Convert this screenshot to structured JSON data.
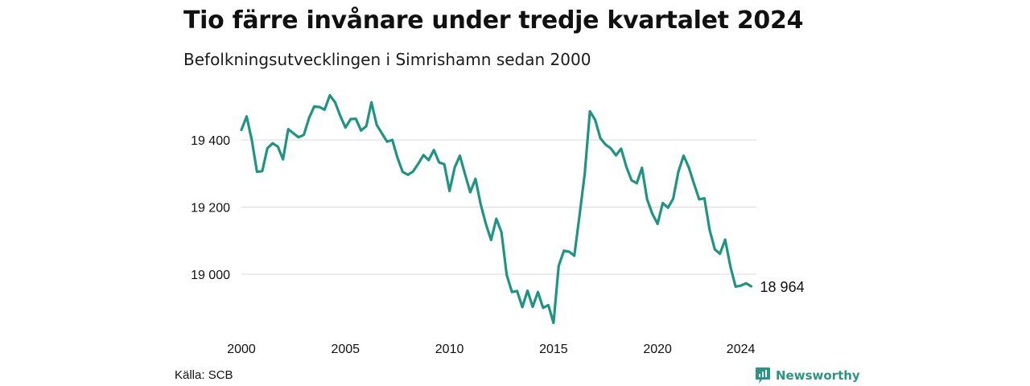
{
  "title": "Tio färre invånare under tredje kvartalet 2024",
  "subtitle": "Befolkningsutvecklingen i Simrishamn sedan 2000",
  "source": "Källa: SCB",
  "brand": {
    "name": "Newsworthy",
    "icon": "newsworthy-logo-icon"
  },
  "colors": {
    "line": "#1f9483",
    "grid": "#d9d9d9",
    "brand": "#2a9583"
  },
  "chart_data": {
    "type": "line",
    "title": "Tio färre invånare under tredje kvartalet 2024",
    "subtitle": "Befolkningsutvecklingen i Simrishamn sedan 2000",
    "xlabel": "",
    "ylabel": "",
    "frequency": "quarterly",
    "start": "2000 Q1",
    "end": "2024 Q3",
    "xlim": [
      2000,
      2024.75
    ],
    "ylim": [
      18850,
      19550
    ],
    "x_ticks": [
      {
        "value": 2000,
        "label": "2000"
      },
      {
        "value": 2005,
        "label": "2005"
      },
      {
        "value": 2010,
        "label": "2010"
      },
      {
        "value": 2015,
        "label": "2015"
      },
      {
        "value": 2020,
        "label": "2020"
      },
      {
        "value": 2024,
        "label": "2024"
      }
    ],
    "y_ticks": [
      {
        "value": 19000,
        "label": "19 000"
      },
      {
        "value": 19200,
        "label": "19 200"
      },
      {
        "value": 19400,
        "label": "19 400"
      }
    ],
    "grid": "horizontal",
    "last_label": "18 964",
    "values": [
      19430,
      19470,
      19400,
      19305,
      19307,
      19375,
      19390,
      19380,
      19342,
      19432,
      19420,
      19408,
      19415,
      19465,
      19500,
      19498,
      19490,
      19533,
      19512,
      19472,
      19437,
      19462,
      19463,
      19428,
      19441,
      19512,
      19445,
      19420,
      19395,
      19400,
      19347,
      19305,
      19296,
      19306,
      19329,
      19355,
      19340,
      19370,
      19333,
      19328,
      19248,
      19318,
      19353,
      19297,
      19244,
      19284,
      19208,
      19150,
      19102,
      19165,
      19125,
      18998,
      18947,
      18950,
      18902,
      18951,
      18903,
      18947,
      18900,
      18908,
      18855,
      19025,
      19070,
      19067,
      19055,
      19175,
      19300,
      19485,
      19460,
      19405,
      19386,
      19375,
      19354,
      19374,
      19320,
      19280,
      19271,
      19317,
      19223,
      19180,
      19150,
      19212,
      19198,
      19225,
      19305,
      19353,
      19318,
      19270,
      19223,
      19226,
      19133,
      19074,
      19061,
      19103,
      19023,
      18963,
      18966,
      18973,
      18964
    ]
  }
}
